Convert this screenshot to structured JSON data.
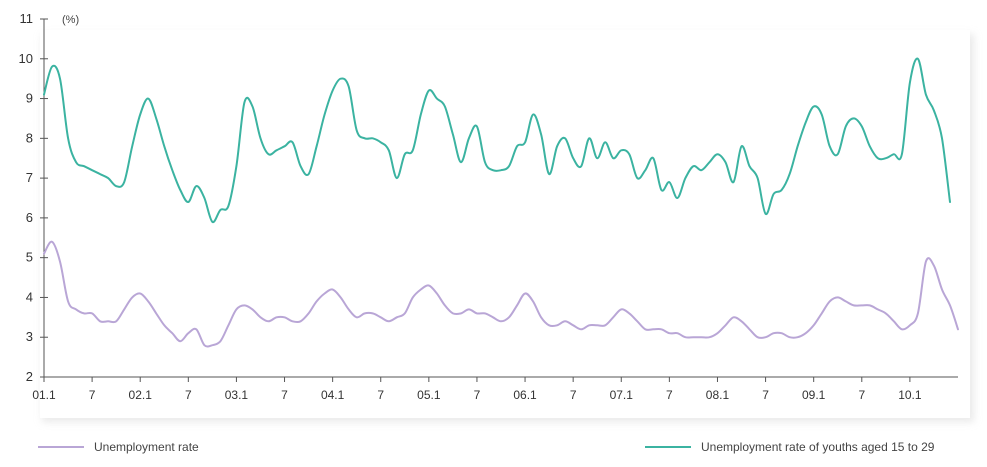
{
  "chart_data": {
    "type": "line",
    "ylabel": "(%)",
    "ylim": [
      2,
      11
    ],
    "yticks": [
      2,
      3,
      4,
      5,
      6,
      7,
      8,
      9,
      10,
      11
    ],
    "xlim": [
      0,
      114
    ],
    "xticks": [
      {
        "x": 0,
        "label": "01.1"
      },
      {
        "x": 6,
        "label": "7"
      },
      {
        "x": 12,
        "label": "02.1"
      },
      {
        "x": 18,
        "label": "7"
      },
      {
        "x": 24,
        "label": "03.1"
      },
      {
        "x": 30,
        "label": "7"
      },
      {
        "x": 36,
        "label": "04.1"
      },
      {
        "x": 42,
        "label": "7"
      },
      {
        "x": 48,
        "label": "05.1"
      },
      {
        "x": 54,
        "label": "7"
      },
      {
        "x": 60,
        "label": "06.1"
      },
      {
        "x": 66,
        "label": "7"
      },
      {
        "x": 72,
        "label": "07.1"
      },
      {
        "x": 78,
        "label": "7"
      },
      {
        "x": 84,
        "label": "08.1"
      },
      {
        "x": 90,
        "label": "7"
      },
      {
        "x": 96,
        "label": "09.1"
      },
      {
        "x": 102,
        "label": "7"
      },
      {
        "x": 108,
        "label": "10.1"
      }
    ],
    "grid": false,
    "legend_position": "bottom",
    "series": [
      {
        "name": "Unemployment rate",
        "color": "#b9a6d6",
        "values": [
          5.1,
          5.4,
          4.9,
          3.9,
          3.7,
          3.6,
          3.6,
          3.4,
          3.4,
          3.4,
          3.7,
          4.0,
          4.1,
          3.9,
          3.6,
          3.3,
          3.1,
          2.9,
          3.1,
          3.2,
          2.8,
          2.8,
          2.9,
          3.3,
          3.7,
          3.8,
          3.7,
          3.5,
          3.4,
          3.5,
          3.5,
          3.4,
          3.4,
          3.6,
          3.9,
          4.1,
          4.2,
          4.0,
          3.7,
          3.5,
          3.6,
          3.6,
          3.5,
          3.4,
          3.5,
          3.6,
          4.0,
          4.2,
          4.3,
          4.1,
          3.8,
          3.6,
          3.6,
          3.7,
          3.6,
          3.6,
          3.5,
          3.4,
          3.5,
          3.8,
          4.1,
          3.9,
          3.5,
          3.3,
          3.3,
          3.4,
          3.3,
          3.2,
          3.3,
          3.3,
          3.3,
          3.5,
          3.7,
          3.6,
          3.4,
          3.2,
          3.2,
          3.2,
          3.1,
          3.1,
          3.0,
          3.0,
          3.0,
          3.0,
          3.1,
          3.3,
          3.5,
          3.4,
          3.2,
          3.0,
          3.0,
          3.1,
          3.1,
          3.0,
          3.0,
          3.1,
          3.3,
          3.6,
          3.9,
          4.0,
          3.9,
          3.8,
          3.8,
          3.8,
          3.7,
          3.6,
          3.4,
          3.2,
          3.3,
          3.6,
          4.9,
          4.8,
          4.2,
          3.8,
          3.2
        ]
      },
      {
        "name": "Unemployment rate of youths aged 15 to 29",
        "color": "#3bb3a1",
        "values": [
          9.1,
          9.8,
          9.5,
          8.0,
          7.4,
          7.3,
          7.2,
          7.1,
          7.0,
          6.8,
          6.9,
          7.8,
          8.6,
          9.0,
          8.5,
          7.8,
          7.2,
          6.7,
          6.4,
          6.8,
          6.5,
          5.9,
          6.2,
          6.3,
          7.3,
          8.9,
          8.8,
          8.0,
          7.6,
          7.7,
          7.8,
          7.9,
          7.3,
          7.1,
          7.8,
          8.6,
          9.2,
          9.5,
          9.3,
          8.2,
          8.0,
          8.0,
          7.9,
          7.7,
          7.0,
          7.6,
          7.7,
          8.6,
          9.2,
          9.0,
          8.8,
          8.1,
          7.4,
          8.0,
          8.3,
          7.4,
          7.2,
          7.2,
          7.3,
          7.8,
          7.9,
          8.6,
          8.1,
          7.1,
          7.8,
          8.0,
          7.5,
          7.3,
          8.0,
          7.5,
          7.9,
          7.5,
          7.7,
          7.6,
          7.0,
          7.2,
          7.5,
          6.7,
          6.9,
          6.5,
          7.0,
          7.3,
          7.2,
          7.4,
          7.6,
          7.4,
          6.9,
          7.8,
          7.3,
          7.0,
          6.1,
          6.6,
          6.7,
          7.1,
          7.8,
          8.4,
          8.8,
          8.6,
          7.8,
          7.6,
          8.3,
          8.5,
          8.3,
          7.8,
          7.5,
          7.5,
          7.6,
          7.6,
          9.4,
          10.0,
          9.1,
          8.7,
          8.0,
          6.4
        ]
      }
    ]
  }
}
